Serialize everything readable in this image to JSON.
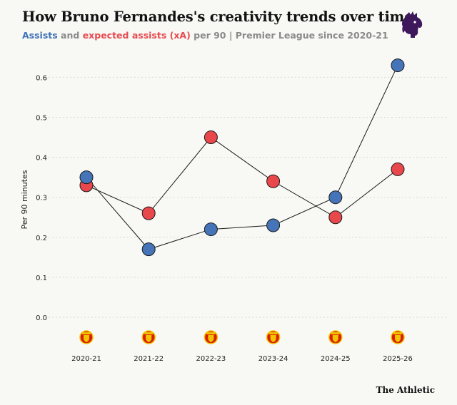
{
  "header": {
    "title": "How Bruno Fernandes's creativity trends over time",
    "subtitle_series1": "Assists",
    "subtitle_and": " and ",
    "subtitle_series2": "expected assists (xA)",
    "subtitle_rest": " per 90 | Premier League since 2020-21"
  },
  "logo_icon": "premier-league-lion-icon",
  "footer": {
    "brand": "The Athletic"
  },
  "colors": {
    "assists": "#4574b8",
    "xa": "#e8474c",
    "grid": "#d9d9d4",
    "club_badge": "#d81e05"
  },
  "chart_data": {
    "type": "line",
    "categories": [
      "2020-21",
      "2021-22",
      "2022-23",
      "2023-24",
      "2024-25",
      "2025-26"
    ],
    "ylabel": "Per 90 minutes",
    "ylim": [
      0,
      0.65
    ],
    "yticks": [
      "0.0",
      "0.1",
      "0.2",
      "0.3",
      "0.4",
      "0.5",
      "0.6"
    ],
    "grid": true,
    "category_icon": "manchester-united-badge-icon",
    "series": [
      {
        "name": "Assists",
        "values": [
          0.35,
          0.17,
          0.22,
          0.23,
          0.3,
          0.63
        ]
      },
      {
        "name": "expected assists (xA)",
        "values": [
          0.33,
          0.26,
          0.45,
          0.34,
          0.25,
          0.37
        ]
      }
    ]
  }
}
